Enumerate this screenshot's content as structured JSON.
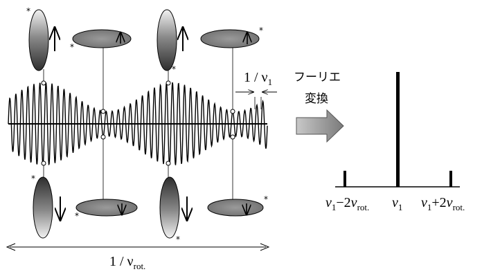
{
  "labels": {
    "period_nu1": "1 / ν",
    "period_nu1_sub": "1",
    "period_rot": "1 / ν",
    "period_rot_sub": "rot.",
    "fourier_line1": "フーリエ",
    "fourier_line2": "変換",
    "star": "*"
  },
  "spectrum": {
    "peaks": [
      {
        "name": "lower-sideband",
        "label_main": "ν",
        "label_sub1": "1",
        "label_op": "−2",
        "label_nu": "ν",
        "label_sub2": "rot.",
        "relative_height": 0.14
      },
      {
        "name": "center",
        "label_main": "ν",
        "label_sub1": "1",
        "relative_height": 1.0
      },
      {
        "name": "upper-sideband",
        "label_main": "ν",
        "label_sub1": "1",
        "label_op": "+2",
        "label_nu": "ν",
        "label_sub2": "rot.",
        "relative_height": 0.14
      }
    ]
  },
  "colors": {
    "ink": "#000000",
    "ellipse_dark": "#3a3a3a",
    "ellipse_mid": "#7a7a7a",
    "ellipse_light": "#e8e8e8",
    "arrow_fill": "#8c8c8c"
  }
}
